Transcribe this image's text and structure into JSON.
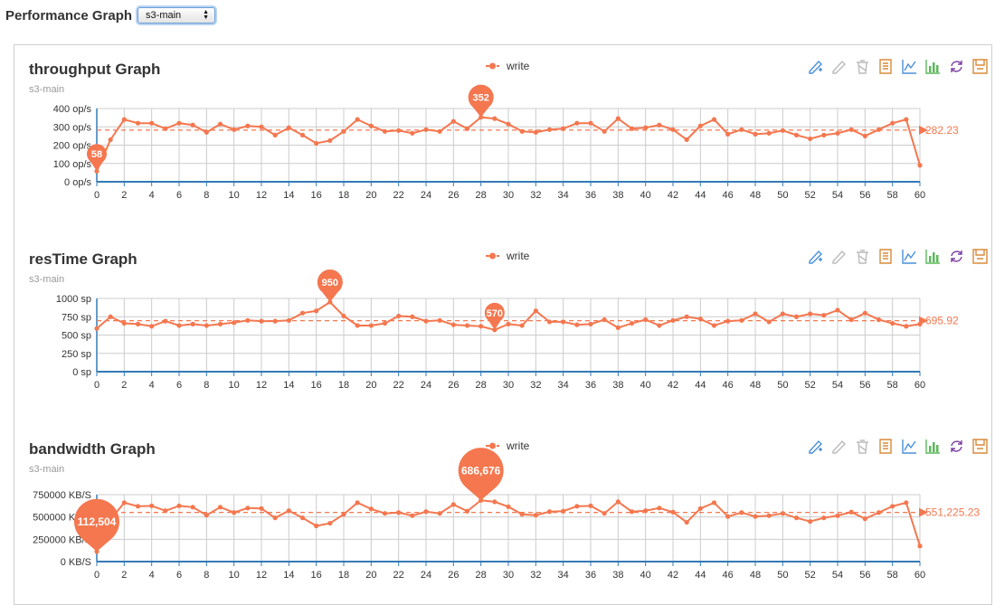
{
  "header": {
    "title": "Performance Graph",
    "selector_value": "s3-main"
  },
  "toolbar": {
    "icons": [
      "mark-line-icon",
      "mark-clear-icon",
      "mark-trash-icon",
      "data-view-icon",
      "line-chart-icon",
      "bar-chart-icon",
      "restore-icon",
      "save-image-icon"
    ]
  },
  "colors": {
    "series": "#f4774f",
    "axis": "#337ab7",
    "grid": "#cccccc"
  },
  "chart_data": [
    {
      "type": "line",
      "title": "throughput Graph",
      "subtitle": "s3-main",
      "legend": [
        "write"
      ],
      "legend_position": "top-center",
      "y_unit": "op/s",
      "ylim": [
        0,
        400
      ],
      "y_ticks": [
        "0 op/s",
        "100 op/s",
        "200 op/s",
        "300 op/s",
        "400 op/s"
      ],
      "x": [
        0,
        1,
        2,
        3,
        4,
        5,
        6,
        7,
        8,
        9,
        10,
        11,
        12,
        13,
        14,
        15,
        16,
        17,
        18,
        19,
        20,
        21,
        22,
        23,
        24,
        25,
        26,
        27,
        28,
        29,
        30,
        31,
        32,
        33,
        34,
        35,
        36,
        37,
        38,
        39,
        40,
        41,
        42,
        43,
        44,
        45,
        46,
        47,
        48,
        49,
        50,
        51,
        52,
        53,
        54,
        55,
        56,
        57,
        58,
        59,
        60
      ],
      "x_ticks": [
        0,
        2,
        4,
        6,
        8,
        10,
        12,
        14,
        16,
        18,
        20,
        22,
        24,
        26,
        28,
        30,
        32,
        34,
        36,
        38,
        40,
        42,
        44,
        46,
        48,
        50,
        52,
        54,
        56,
        58,
        60
      ],
      "series": [
        {
          "name": "write",
          "values": [
            58,
            230,
            340,
            320,
            320,
            290,
            320,
            310,
            270,
            315,
            285,
            305,
            300,
            255,
            295,
            255,
            210,
            225,
            275,
            340,
            305,
            275,
            280,
            265,
            285,
            275,
            330,
            290,
            352,
            345,
            315,
            275,
            270,
            285,
            290,
            320,
            320,
            275,
            345,
            290,
            295,
            310,
            285,
            230,
            305,
            340,
            260,
            285,
            260,
            265,
            280,
            255,
            235,
            255,
            265,
            285,
            250,
            285,
            320,
            340,
            90
          ]
        }
      ],
      "max_label": {
        "x": 28,
        "value": "352"
      },
      "min_label": {
        "x": 0,
        "value": "58"
      },
      "average": 282.23,
      "average_label": "282.23"
    },
    {
      "type": "line",
      "title": "resTime Graph",
      "subtitle": "s3-main",
      "legend": [
        "write"
      ],
      "legend_position": "top-center",
      "y_unit": "sp",
      "ylim": [
        0,
        1000
      ],
      "y_ticks": [
        "0 sp",
        "250 sp",
        "500 sp",
        "750 sp",
        "1000 sp"
      ],
      "x": [
        0,
        1,
        2,
        3,
        4,
        5,
        6,
        7,
        8,
        9,
        10,
        11,
        12,
        13,
        14,
        15,
        16,
        17,
        18,
        19,
        20,
        21,
        22,
        23,
        24,
        25,
        26,
        27,
        28,
        29,
        30,
        31,
        32,
        33,
        34,
        35,
        36,
        37,
        38,
        39,
        40,
        41,
        42,
        43,
        44,
        45,
        46,
        47,
        48,
        49,
        50,
        51,
        52,
        53,
        54,
        55,
        56,
        57,
        58,
        59,
        60
      ],
      "x_ticks": [
        0,
        2,
        4,
        6,
        8,
        10,
        12,
        14,
        16,
        18,
        20,
        22,
        24,
        26,
        28,
        30,
        32,
        34,
        36,
        38,
        40,
        42,
        44,
        46,
        48,
        50,
        52,
        54,
        56,
        58,
        60
      ],
      "series": [
        {
          "name": "write",
          "values": [
            590,
            750,
            660,
            650,
            620,
            690,
            630,
            650,
            630,
            650,
            670,
            700,
            690,
            690,
            700,
            800,
            830,
            950,
            760,
            630,
            630,
            660,
            760,
            750,
            690,
            700,
            640,
            630,
            620,
            570,
            650,
            630,
            830,
            680,
            680,
            640,
            650,
            710,
            600,
            660,
            710,
            630,
            700,
            750,
            720,
            630,
            690,
            700,
            790,
            680,
            790,
            750,
            790,
            770,
            840,
            710,
            800,
            710,
            660,
            620,
            650
          ]
        }
      ],
      "max_label": {
        "x": 17,
        "value": "950"
      },
      "min_label": {
        "x": 29,
        "value": "570"
      },
      "average": 695.92,
      "average_label": "695.92"
    },
    {
      "type": "line",
      "title": "bandwidth Graph",
      "subtitle": "s3-main",
      "legend": [
        "write"
      ],
      "legend_position": "top-center",
      "y_unit": "KB/S",
      "ylim": [
        0,
        750000
      ],
      "y_ticks": [
        "0 KB/S",
        "250000 KB/S",
        "500000 KB/S",
        "750000 KB/S"
      ],
      "x": [
        0,
        1,
        2,
        3,
        4,
        5,
        6,
        7,
        8,
        9,
        10,
        11,
        12,
        13,
        14,
        15,
        16,
        17,
        18,
        19,
        20,
        21,
        22,
        23,
        24,
        25,
        26,
        27,
        28,
        29,
        30,
        31,
        32,
        33,
        34,
        35,
        36,
        37,
        38,
        39,
        40,
        41,
        42,
        43,
        44,
        45,
        46,
        47,
        48,
        49,
        50,
        51,
        52,
        53,
        54,
        55,
        56,
        57,
        58,
        59,
        60
      ],
      "x_ticks": [
        0,
        2,
        4,
        6,
        8,
        10,
        12,
        14,
        16,
        18,
        20,
        22,
        24,
        26,
        28,
        30,
        32,
        34,
        36,
        38,
        40,
        42,
        44,
        46,
        48,
        50,
        52,
        54,
        56,
        58,
        60
      ],
      "series": [
        {
          "name": "write",
          "values": [
            112504,
            470000,
            660000,
            620000,
            625000,
            570000,
            625000,
            610000,
            520000,
            610000,
            550000,
            600000,
            595000,
            490000,
            570000,
            490000,
            400000,
            430000,
            530000,
            660000,
            590000,
            540000,
            550000,
            515000,
            560000,
            540000,
            640000,
            565000,
            686676,
            670000,
            615000,
            530000,
            520000,
            560000,
            565000,
            620000,
            625000,
            540000,
            670000,
            560000,
            570000,
            600000,
            555000,
            440000,
            595000,
            660000,
            505000,
            550000,
            505000,
            515000,
            540000,
            490000,
            450000,
            490000,
            515000,
            555000,
            480000,
            550000,
            620000,
            660000,
            175000
          ]
        }
      ],
      "max_label": {
        "x": 28,
        "value": "686,676"
      },
      "min_label": {
        "x": 0,
        "value": "112,504"
      },
      "average": 551225.23,
      "average_label": "551,225.23"
    }
  ]
}
